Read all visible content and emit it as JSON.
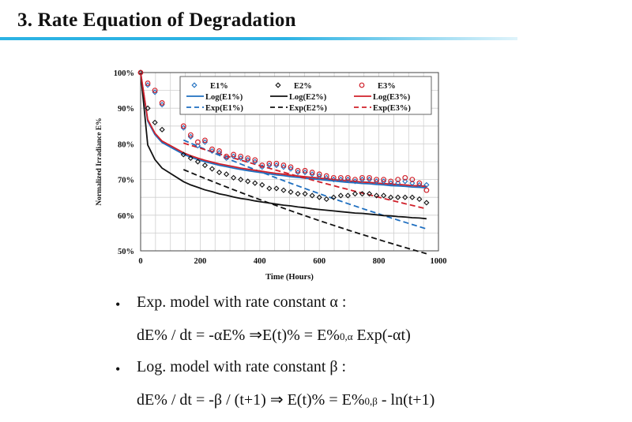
{
  "slide": {
    "title": "3. Rate Equation of Degradation"
  },
  "bullets": [
    {
      "text": "Exp. model with rate constant α :",
      "equation_left": "dE% / dt = -αE% ⇒E(t)% = E%",
      "equation_sub": "0,α",
      "equation_right": " Exp(-αt)"
    },
    {
      "text": "Log. model with rate constant β :",
      "equation_left": "dE% / dt = -β / (t+1) ⇒ E(t)% = E%",
      "equation_sub": "0,β",
      "equation_right": " - ln(t+1)"
    }
  ],
  "colors": {
    "accent": "#2bb2e3",
    "e1": "#1f6fc0",
    "e2": "#111111",
    "e3": "#d0202a"
  },
  "chart_data": {
    "type": "scatter",
    "xlabel": "Time (Hours)",
    "ylabel": "Normalized Irradiance E%",
    "xlim": [
      0,
      1000
    ],
    "ylim": [
      50,
      100
    ],
    "xticks": [
      0,
      200,
      400,
      600,
      800,
      1000
    ],
    "yticks": [
      50,
      60,
      70,
      80,
      90,
      100
    ],
    "ytick_labels": [
      "50%",
      "60%",
      "70%",
      "80%",
      "90%",
      "100%"
    ],
    "grid": true,
    "legend": [
      {
        "label": "E1%",
        "series": "E1",
        "kind": "marker"
      },
      {
        "label": "E2%",
        "series": "E2",
        "kind": "marker"
      },
      {
        "label": "E3%",
        "series": "E3",
        "kind": "marker"
      },
      {
        "label": "Log(E1%)",
        "series": "E1",
        "kind": "log"
      },
      {
        "label": "Log(E2%)",
        "series": "E2",
        "kind": "log"
      },
      {
        "label": "Log(E3%)",
        "series": "E3",
        "kind": "log"
      },
      {
        "label": "Exp(E1%)",
        "series": "E1",
        "kind": "exp"
      },
      {
        "label": "Exp(E2%)",
        "series": "E2",
        "kind": "exp"
      },
      {
        "label": "Exp(E3%)",
        "series": "E3",
        "kind": "exp"
      }
    ],
    "series": [
      {
        "name": "E1%",
        "x": [
          0,
          24,
          48,
          72,
          144,
          168,
          192,
          216,
          240,
          264,
          288,
          312,
          336,
          360,
          384,
          408,
          432,
          456,
          480,
          504,
          528,
          552,
          576,
          600,
          624,
          648,
          672,
          696,
          720,
          744,
          768,
          792,
          816,
          840,
          864,
          888,
          912,
          936,
          960
        ],
        "y": [
          100,
          96.5,
          94.5,
          91,
          84.5,
          82,
          79.5,
          80.5,
          78,
          77.5,
          76,
          76.5,
          76,
          75.5,
          75,
          73.5,
          74,
          74,
          73.5,
          73,
          72,
          72,
          71.5,
          71,
          70.5,
          70,
          70,
          70,
          69.5,
          70,
          70,
          69.5,
          69.5,
          69,
          69,
          69.5,
          69,
          68.5,
          68.5
        ],
        "log": [
          100,
          86.4,
          82.6,
          80.4,
          77.1,
          76.3,
          75.6,
          75.0,
          74.5,
          74.0,
          73.6,
          73.2,
          72.8,
          72.5,
          72.2,
          71.9,
          71.6,
          71.3,
          71.1,
          70.8,
          70.6,
          70.4,
          70.2,
          70.0,
          69.8,
          69.6,
          69.4,
          69.2,
          69.1,
          68.9,
          68.8,
          68.6,
          68.5,
          68.3,
          68.2,
          68.1,
          67.9,
          67.8,
          67.7
        ],
        "exp_a": 0.00045,
        "exp_e0": 86.5
      },
      {
        "name": "E2%",
        "x": [
          0,
          24,
          48,
          72,
          144,
          168,
          192,
          216,
          240,
          264,
          288,
          312,
          336,
          360,
          384,
          408,
          432,
          456,
          480,
          504,
          528,
          552,
          576,
          600,
          624,
          648,
          672,
          696,
          720,
          744,
          768,
          792,
          816,
          840,
          864,
          888,
          912,
          936,
          960
        ],
        "y": [
          100,
          90,
          86,
          84,
          77,
          76,
          75,
          74,
          73,
          72,
          71.5,
          70.5,
          70,
          69.5,
          69,
          68.5,
          67.5,
          67.5,
          67,
          66.5,
          66,
          66,
          65.5,
          65,
          64.5,
          65,
          65.5,
          65.5,
          66,
          66,
          66,
          65.5,
          65.5,
          65,
          65,
          65,
          65,
          64.5,
          63.5
        ],
        "log": [
          100,
          79.7,
          75.6,
          73.2,
          69.4,
          68.5,
          67.8,
          67.1,
          66.6,
          66.0,
          65.6,
          65.1,
          64.7,
          64.4,
          64.0,
          63.7,
          63.4,
          63.1,
          62.8,
          62.6,
          62.3,
          62.1,
          61.8,
          61.6,
          61.4,
          61.2,
          61.0,
          60.8,
          60.6,
          60.5,
          60.3,
          60.1,
          59.9,
          59.8,
          59.6,
          59.5,
          59.3,
          59.2,
          59.0
        ],
        "exp_a": 0.00048,
        "exp_e0": 78.0
      },
      {
        "name": "E3%",
        "x": [
          0,
          24,
          48,
          72,
          144,
          168,
          192,
          216,
          240,
          264,
          288,
          312,
          336,
          360,
          384,
          408,
          432,
          456,
          480,
          504,
          528,
          552,
          576,
          600,
          624,
          648,
          672,
          696,
          720,
          744,
          768,
          792,
          816,
          840,
          864,
          888,
          912,
          936,
          960
        ],
        "y": [
          100,
          97,
          95,
          91.5,
          85,
          82.5,
          80.5,
          81,
          78.5,
          78,
          76.5,
          77,
          76.5,
          76,
          75.5,
          74,
          74.5,
          74.5,
          74,
          73.5,
          72.5,
          72.5,
          72,
          71.5,
          71,
          70.5,
          70.5,
          70.5,
          70,
          70.5,
          70.5,
          70,
          70,
          69.5,
          70,
          70.5,
          70,
          69,
          67
        ],
        "log": [
          100,
          86.8,
          83.0,
          80.8,
          77.5,
          76.7,
          76.0,
          75.4,
          74.9,
          74.4,
          74.0,
          73.6,
          73.2,
          72.9,
          72.6,
          72.3,
          72.0,
          71.7,
          71.5,
          71.2,
          71.0,
          70.8,
          70.6,
          70.4,
          70.2,
          70.0,
          69.8,
          69.6,
          69.5,
          69.3,
          69.2,
          69.0,
          68.9,
          68.7,
          68.6,
          68.5,
          68.3,
          68.2,
          68.1
        ],
        "exp_a": 0.00032,
        "exp_e0": 84.0
      }
    ]
  }
}
